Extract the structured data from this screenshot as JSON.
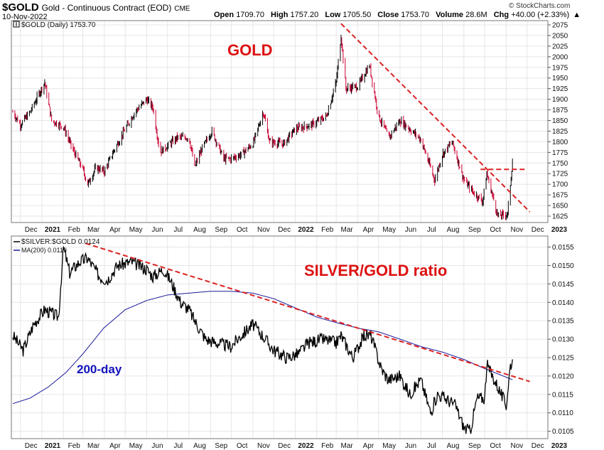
{
  "header": {
    "symbol": "$GOLD",
    "description": "Gold - Continuous Contract (EOD)",
    "exchange": "CME",
    "date": "10-Nov-2022",
    "open_label": "Open",
    "open": "1709.70",
    "high_label": "High",
    "high": "1757.20",
    "low_label": "Low",
    "low": "1705.50",
    "close_label": "Close",
    "close": "1753.70",
    "volume_label": "Volume",
    "volume": "28.6M",
    "chg_label": "Chg",
    "chg": "+40.00 (+2.33%)",
    "watermark": "© StockCharts.com"
  },
  "colors": {
    "up_bar": "#000000",
    "down_bar": "#cc0033",
    "ratio_line": "#000000",
    "ma_line": "#1a1a99",
    "trend_line": "#dd2222",
    "label_red": "#dd1111",
    "label_blue": "#1111bb",
    "border": "#777777",
    "grid": "#e6e6e6"
  },
  "chart_data": [
    {
      "type": "line",
      "style": "ohlc-bars",
      "legend": "$GOLD (Daily) 1753.70",
      "annotation": "GOLD",
      "ylim": [
        1610,
        2085
      ],
      "yticks": [
        1625,
        1650,
        1675,
        1700,
        1725,
        1750,
        1775,
        1800,
        1825,
        1850,
        1875,
        1900,
        1925,
        1950,
        1975,
        2000,
        2025,
        2050,
        2075
      ],
      "x_labels": [
        "Dec",
        "2021",
        "Feb",
        "Mar",
        "Apr",
        "May",
        "Jun",
        "Jul",
        "Aug",
        "Sep",
        "Oct",
        "Nov",
        "Dec",
        "2022",
        "Feb",
        "Mar",
        "Apr",
        "May",
        "Jun",
        "Jul",
        "Aug",
        "Sep",
        "Oct",
        "Nov",
        "Dec",
        "2023"
      ],
      "x_bold": [
        "2021",
        "2022",
        "2023"
      ],
      "grid": true,
      "series": [
        {
          "key": "gold_close",
          "x": [
            "2020-11-20",
            "2020-12-01",
            "2020-12-15",
            "2021-01-05",
            "2021-01-15",
            "2021-02-01",
            "2021-02-15",
            "2021-03-01",
            "2021-03-08",
            "2021-03-20",
            "2021-04-01",
            "2021-04-15",
            "2021-05-01",
            "2021-05-15",
            "2021-06-01",
            "2021-06-10",
            "2021-06-20",
            "2021-07-01",
            "2021-07-15",
            "2021-08-01",
            "2021-08-09",
            "2021-08-20",
            "2021-09-03",
            "2021-09-20",
            "2021-09-30",
            "2021-10-15",
            "2021-11-01",
            "2021-11-16",
            "2021-11-25",
            "2021-12-15",
            "2022-01-01",
            "2022-01-25",
            "2022-02-15",
            "2022-03-01",
            "2022-03-08",
            "2022-03-15",
            "2022-04-01",
            "2022-04-18",
            "2022-05-01",
            "2022-05-16",
            "2022-06-01",
            "2022-06-15",
            "2022-07-01",
            "2022-07-21",
            "2022-08-01",
            "2022-08-15",
            "2022-09-01",
            "2022-09-15",
            "2022-09-28",
            "2022-10-04",
            "2022-10-20",
            "2022-11-03",
            "2022-11-10"
          ],
          "y": [
            1870,
            1840,
            1870,
            1940,
            1850,
            1835,
            1780,
            1735,
            1700,
            1740,
            1730,
            1780,
            1830,
            1870,
            1900,
            1880,
            1775,
            1790,
            1810,
            1810,
            1740,
            1785,
            1825,
            1760,
            1760,
            1770,
            1795,
            1870,
            1800,
            1795,
            1830,
            1840,
            1860,
            1940,
            2050,
            1925,
            1930,
            1980,
            1860,
            1810,
            1850,
            1830,
            1805,
            1710,
            1770,
            1800,
            1710,
            1680,
            1660,
            1725,
            1625,
            1630,
            1753.7
          ]
        }
      ],
      "annotations": [
        {
          "kind": "trendline",
          "from": [
            "2022-03-08",
            2078
          ],
          "to": [
            "2022-12-05",
            1635
          ]
        },
        {
          "kind": "resistance",
          "from": [
            "2022-09-25",
            1735
          ],
          "to": [
            "2022-12-01",
            1735
          ]
        }
      ]
    },
    {
      "type": "line",
      "legend_ratio": "$SILVER:$GOLD 0.0124",
      "legend_ma": "MA(200) 0.0119",
      "annotation_ratio": "SILVER/GOLD ratio",
      "annotation_ma": "200-day",
      "ylim": [
        0.0103,
        0.0158
      ],
      "yticks": [
        0.0105,
        0.011,
        0.0115,
        0.012,
        0.0125,
        0.013,
        0.0135,
        0.014,
        0.0145,
        0.015,
        0.0155
      ],
      "ytick_labels": [
        "0.0105",
        "0.0110",
        "0.0115",
        "0.0120",
        "0.0125",
        "0.0130",
        "0.0135",
        "0.0140",
        "0.0145",
        "0.0150",
        "0.0155"
      ],
      "x_labels": [
        "Dec",
        "2021",
        "Feb",
        "Mar",
        "Apr",
        "May",
        "Jun",
        "Jul",
        "Aug",
        "Sep",
        "Oct",
        "Nov",
        "Dec",
        "2022",
        "Feb",
        "Mar",
        "Apr",
        "May",
        "Jun",
        "Jul",
        "Aug",
        "Sep",
        "Oct",
        "Nov",
        "Dec",
        "2023"
      ],
      "x_bold": [
        "2021",
        "2022",
        "2023"
      ],
      "grid": true,
      "series": [
        {
          "name": "$SILVER:$GOLD",
          "key": "ratio",
          "x": [
            "2020-11-20",
            "2020-12-05",
            "2020-12-20",
            "2021-01-05",
            "2021-01-25",
            "2021-02-01",
            "2021-02-10",
            "2021-02-24",
            "2021-03-08",
            "2021-03-25",
            "2021-04-05",
            "2021-04-20",
            "2021-05-10",
            "2021-06-01",
            "2021-06-10",
            "2021-06-25",
            "2021-07-05",
            "2021-07-20",
            "2021-08-01",
            "2021-08-09",
            "2021-08-25",
            "2021-09-10",
            "2021-09-30",
            "2021-10-15",
            "2021-11-01",
            "2021-11-15",
            "2021-12-01",
            "2021-12-20",
            "2022-01-05",
            "2022-01-20",
            "2022-02-10",
            "2022-03-01",
            "2022-03-08",
            "2022-03-25",
            "2022-04-10",
            "2022-04-20",
            "2022-05-05",
            "2022-05-15",
            "2022-06-01",
            "2022-06-15",
            "2022-07-01",
            "2022-07-15",
            "2022-07-25",
            "2022-08-05",
            "2022-08-20",
            "2022-09-01",
            "2022-09-10",
            "2022-09-20",
            "2022-10-01",
            "2022-10-04",
            "2022-10-20",
            "2022-11-01",
            "2022-11-07",
            "2022-11-10"
          ],
          "y": [
            0.0131,
            0.0127,
            0.0134,
            0.0138,
            0.0136,
            0.0155,
            0.0148,
            0.0151,
            0.0152,
            0.0147,
            0.0146,
            0.015,
            0.0151,
            0.0149,
            0.0147,
            0.0149,
            0.0146,
            0.014,
            0.0138,
            0.0135,
            0.013,
            0.0129,
            0.0128,
            0.0131,
            0.0134,
            0.0131,
            0.0127,
            0.0125,
            0.0126,
            0.0129,
            0.013,
            0.0129,
            0.0131,
            0.0125,
            0.0131,
            0.0131,
            0.0122,
            0.0119,
            0.012,
            0.0115,
            0.0119,
            0.011,
            0.0115,
            0.0114,
            0.0112,
            0.0106,
            0.0105,
            0.0114,
            0.0114,
            0.0123,
            0.0117,
            0.0112,
            0.0123,
            0.0124
          ]
        },
        {
          "name": "MA(200)",
          "key": "ma",
          "x": [
            "2020-11-20",
            "2020-12-15",
            "2021-01-10",
            "2021-02-05",
            "2021-03-01",
            "2021-03-31",
            "2021-05-01",
            "2021-06-01",
            "2021-07-01",
            "2021-08-01",
            "2021-09-01",
            "2021-10-01",
            "2021-11-01",
            "2021-12-01",
            "2022-01-01",
            "2022-02-01",
            "2022-03-01",
            "2022-04-01",
            "2022-05-01",
            "2022-06-01",
            "2022-07-01",
            "2022-08-01",
            "2022-09-01",
            "2022-10-01",
            "2022-11-10"
          ],
          "y": [
            0.01125,
            0.0114,
            0.0117,
            0.0121,
            0.0126,
            0.0133,
            0.0138,
            0.01405,
            0.0142,
            0.01425,
            0.0143,
            0.0143,
            0.01425,
            0.0141,
            0.01385,
            0.0136,
            0.01345,
            0.0133,
            0.0132,
            0.013,
            0.0128,
            0.01265,
            0.01245,
            0.0122,
            0.0119
          ]
        }
      ],
      "annotations": [
        {
          "kind": "trendline",
          "from": [
            "2021-03-05",
            0.0156
          ],
          "to": [
            "2022-12-05",
            0.01185
          ]
        }
      ]
    }
  ]
}
